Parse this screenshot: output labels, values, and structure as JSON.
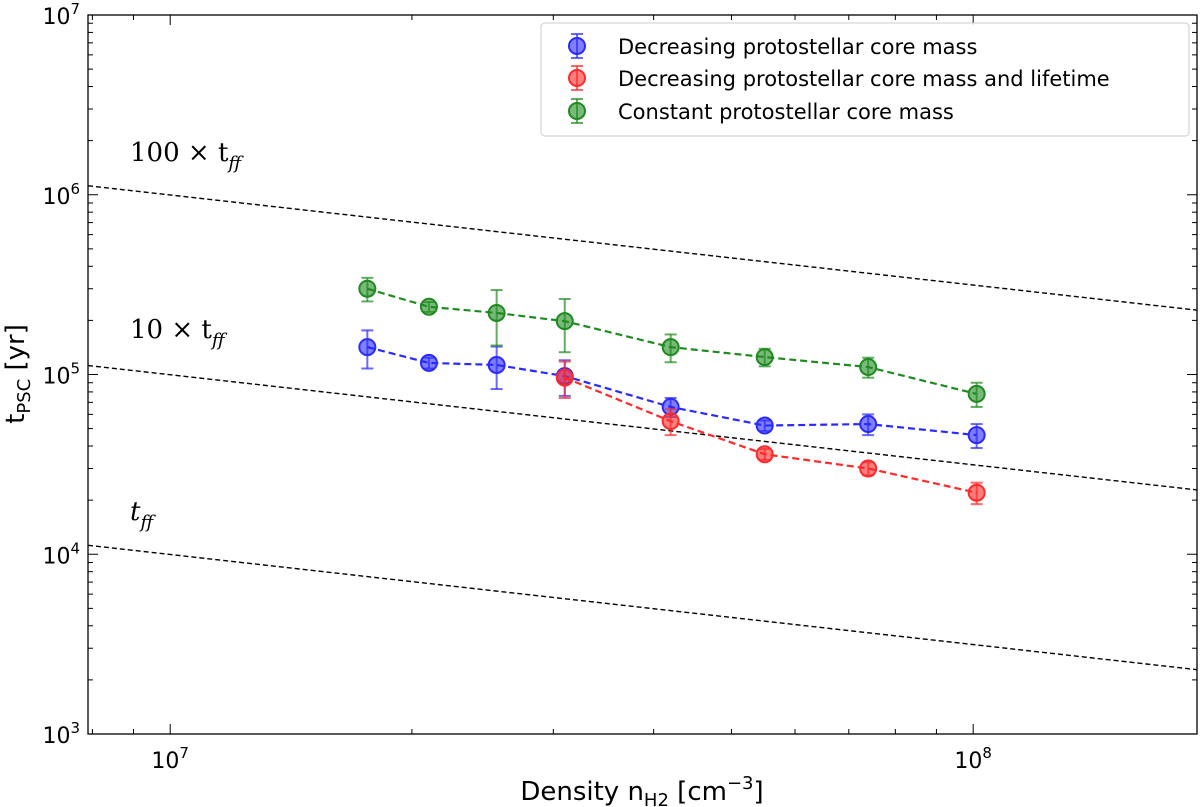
{
  "chart_data": {
    "type": "scatter",
    "xscale": "log",
    "yscale": "log",
    "xlim": [
      7900000,
      190000000
    ],
    "ylim": [
      1000,
      10000000
    ],
    "xlabel_main": "Density n",
    "xlabel_sub": "H2",
    "xlabel_unit": " [cm",
    "xlabel_exp": "−3",
    "xlabel_close": "]",
    "ylabel_main": "t",
    "ylabel_sub": "PSC",
    "ylabel_unit": " [yr]",
    "x_ticks": [
      {
        "value": 10000000,
        "base": "10",
        "exp": "7"
      },
      {
        "value": 100000000,
        "base": "10",
        "exp": "8"
      }
    ],
    "y_ticks": [
      {
        "value": 1000,
        "base": "10",
        "exp": "3"
      },
      {
        "value": 10000,
        "base": "10",
        "exp": "4"
      },
      {
        "value": 100000,
        "base": "10",
        "exp": "5"
      },
      {
        "value": 1000000,
        "base": "10",
        "exp": "6"
      },
      {
        "value": 10000000,
        "base": "10",
        "exp": "7"
      }
    ],
    "legend_position": "upper-right",
    "series": [
      {
        "name": "Decreasing protostellar core mass",
        "color": "#2a2aff",
        "x": [
          17600000,
          21000000,
          25500000,
          31000000,
          42000000,
          55000000,
          74000000,
          101000000
        ],
        "y": [
          142000,
          116000,
          113000,
          98000,
          66000,
          52000,
          53000,
          46000
        ],
        "err_low": [
          34000,
          8000,
          30000,
          22000,
          8000,
          3500,
          7000,
          7000
        ],
        "err_high": [
          34000,
          8000,
          30000,
          22000,
          8000,
          3500,
          7000,
          7000
        ]
      },
      {
        "name": "Decreasing protostellar core mass and lifetime",
        "color": "#ff2a2a",
        "x": [
          31000000,
          42000000,
          55000000,
          74000000,
          101000000
        ],
        "y": [
          96000,
          55000,
          36000,
          30000,
          22000
        ],
        "err_low": [
          22000,
          9000,
          2500,
          2500,
          3000
        ],
        "err_high": [
          22000,
          9000,
          2500,
          2500,
          3000
        ]
      },
      {
        "name": "Constant protostellar core mass",
        "color": "#1f8a1f",
        "x": [
          17600000,
          21000000,
          25500000,
          31000000,
          42000000,
          55000000,
          74000000,
          101000000
        ],
        "y": [
          300000,
          238000,
          220000,
          198000,
          142000,
          125000,
          110000,
          78000
        ],
        "err_low": [
          45000,
          15000,
          75000,
          65000,
          25000,
          14000,
          14000,
          12000
        ],
        "err_high": [
          45000,
          15000,
          75000,
          65000,
          25000,
          14000,
          14000,
          12000
        ]
      }
    ],
    "reference_lines": [
      {
        "label_main": "100 × t",
        "label_sub": "ff",
        "x": [
          7900000,
          190000000
        ],
        "y": [
          1122000,
          228000
        ]
      },
      {
        "label_main": "10 × t",
        "label_sub": "ff",
        "x": [
          7900000,
          190000000
        ],
        "y": [
          112200,
          22800
        ]
      },
      {
        "label_main": "t",
        "label_sub": "ff",
        "x": [
          7900000,
          190000000
        ],
        "y": [
          11220,
          2280
        ]
      }
    ]
  }
}
